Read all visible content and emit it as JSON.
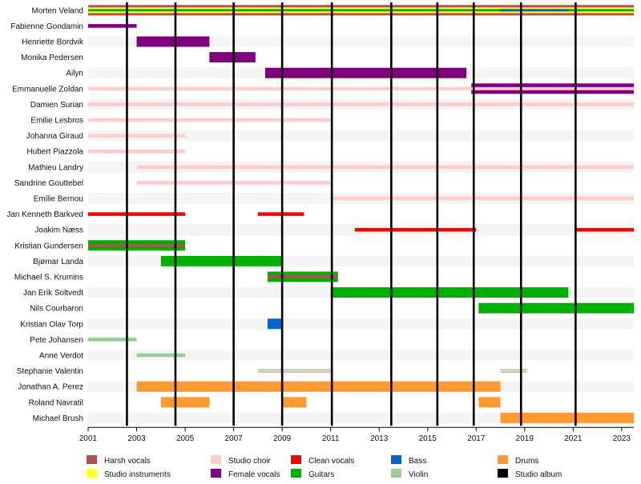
{
  "chart_data": {
    "type": "timeline",
    "title": "",
    "xlabel": "",
    "ylabel": "",
    "xlim": [
      2001,
      2023.5
    ],
    "x_ticks": [
      "2001",
      "2003",
      "2005",
      "2007",
      "2009",
      "2011",
      "2013",
      "2015",
      "2017",
      "2019",
      "2021",
      "2023"
    ],
    "album_years": [
      2002.6,
      2004.6,
      2007.0,
      2009.0,
      2011.05,
      2013.5,
      2015.4,
      2016.9,
      2018.85,
      2021.1
    ],
    "roles": [
      {
        "key": "harsh",
        "name": "Harsh vocals",
        "color": "#b05050"
      },
      {
        "key": "instr",
        "name": "Studio instruments",
        "color": "#ffff33"
      },
      {
        "key": "choir",
        "name": "Studio choir",
        "color": "#ffcccc"
      },
      {
        "key": "female",
        "name": "Female vocals",
        "color": "#800080"
      },
      {
        "key": "clean",
        "name": "Clean vocals",
        "color": "#ff0000"
      },
      {
        "key": "guitars",
        "name": "Guitars",
        "color": "#00b000"
      },
      {
        "key": "bass",
        "name": "Bass",
        "color": "#0066cc"
      },
      {
        "key": "violin",
        "name": "Violin",
        "color": "#99cc99"
      },
      {
        "key": "drums",
        "name": "Drums",
        "color": "#ff9a33"
      },
      {
        "key": "album",
        "name": "Studio album",
        "color": "#000000"
      }
    ],
    "members": [
      {
        "name": "Morten Veland",
        "bars": [
          {
            "start": 2001,
            "end": 2023.5,
            "role": "harsh"
          },
          {
            "start": 2001,
            "end": 2023.5,
            "role": "instr",
            "thin": 0.55
          },
          {
            "start": 2001,
            "end": 2023.5,
            "role": "guitars",
            "thin": 0.22
          },
          {
            "start": 2018.0,
            "end": 2020.8,
            "role": "bass",
            "thin": 0.22
          }
        ]
      },
      {
        "name": "Fabienne Gondamin",
        "bars": [
          {
            "start": 2001,
            "end": 2003.0,
            "role": "female",
            "thin": 0.35
          }
        ]
      },
      {
        "name": "Henriette Bordvik",
        "bars": [
          {
            "start": 2003.0,
            "end": 2006.0,
            "role": "female"
          }
        ]
      },
      {
        "name": "Monika Pedersen",
        "bars": [
          {
            "start": 2006.0,
            "end": 2007.9,
            "role": "female"
          }
        ]
      },
      {
        "name": "Ailyn",
        "bars": [
          {
            "start": 2008.3,
            "end": 2016.6,
            "role": "female"
          }
        ]
      },
      {
        "name": "Emmanuelle Zoldan",
        "bars": [
          {
            "start": 2001,
            "end": 2023.5,
            "role": "choir",
            "thin": 0.35
          },
          {
            "start": 2016.8,
            "end": 2023.5,
            "role": "female"
          },
          {
            "start": 2016.8,
            "end": 2023.5,
            "role": "choir",
            "thin": 0.3
          }
        ]
      },
      {
        "name": "Damien Surian",
        "bars": [
          {
            "start": 2001,
            "end": 2023.5,
            "role": "choir",
            "thin": 0.35
          }
        ]
      },
      {
        "name": "Emilie Lesbros",
        "bars": [
          {
            "start": 2001,
            "end": 2011.0,
            "role": "choir",
            "thin": 0.35
          }
        ]
      },
      {
        "name": "Johanna Giraud",
        "bars": [
          {
            "start": 2001,
            "end": 2005.0,
            "role": "choir",
            "thin": 0.35
          }
        ]
      },
      {
        "name": "Hubert Piazzola",
        "bars": [
          {
            "start": 2001,
            "end": 2005.0,
            "role": "choir",
            "thin": 0.35
          }
        ]
      },
      {
        "name": "Mathieu Landry",
        "bars": [
          {
            "start": 2003.0,
            "end": 2023.5,
            "role": "choir",
            "thin": 0.35
          }
        ]
      },
      {
        "name": "Sandrine Gouttebel",
        "bars": [
          {
            "start": 2003.0,
            "end": 2011.0,
            "role": "choir",
            "thin": 0.35
          }
        ]
      },
      {
        "name": "Emilie Bernou",
        "bars": [
          {
            "start": 2011.0,
            "end": 2023.5,
            "role": "choir",
            "thin": 0.35
          }
        ]
      },
      {
        "name": "Jan Kenneth Barkved",
        "bars": [
          {
            "start": 2001,
            "end": 2005.0,
            "role": "clean",
            "thin": 0.35
          },
          {
            "start": 2008.0,
            "end": 2009.9,
            "role": "clean",
            "thin": 0.35
          }
        ]
      },
      {
        "name": "Joakim Næss",
        "bars": [
          {
            "start": 2012.0,
            "end": 2017.0,
            "role": "clean",
            "thin": 0.35
          },
          {
            "start": 2021.1,
            "end": 2023.5,
            "role": "clean",
            "thin": 0.35
          }
        ]
      },
      {
        "name": "Kristian Gundersen",
        "bars": [
          {
            "start": 2001,
            "end": 2005.0,
            "role": "guitars"
          },
          {
            "start": 2001,
            "end": 2005.0,
            "role": "harsh",
            "thin": 0.3
          }
        ]
      },
      {
        "name": "Bjømar Landa",
        "bars": [
          {
            "start": 2004.0,
            "end": 2009.0,
            "role": "guitars"
          }
        ]
      },
      {
        "name": "Michael S. Krumins",
        "bars": [
          {
            "start": 2008.4,
            "end": 2011.3,
            "role": "guitars"
          },
          {
            "start": 2008.4,
            "end": 2011.3,
            "role": "harsh",
            "thin": 0.3
          }
        ]
      },
      {
        "name": "Jan Erik Soltvedt",
        "bars": [
          {
            "start": 2011.0,
            "end": 2020.8,
            "role": "guitars"
          }
        ]
      },
      {
        "name": "Nils Courbaron",
        "bars": [
          {
            "start": 2017.1,
            "end": 2023.5,
            "role": "guitars"
          }
        ]
      },
      {
        "name": "Kristian Olav Torp",
        "bars": [
          {
            "start": 2008.4,
            "end": 2009.0,
            "role": "bass"
          }
        ]
      },
      {
        "name": "Pete Johansen",
        "bars": [
          {
            "start": 2001,
            "end": 2003.0,
            "role": "violin",
            "thin": 0.35
          }
        ]
      },
      {
        "name": "Anne Verdot",
        "bars": [
          {
            "start": 2003.0,
            "end": 2005.0,
            "role": "violin",
            "thin": 0.35
          }
        ]
      },
      {
        "name": "Stephanie Valentin",
        "bars": [
          {
            "start": 2008.0,
            "end": 2011.0,
            "role": "violin",
            "thin": 0.35
          },
          {
            "start": 2008.0,
            "end": 2011.0,
            "role": "choir",
            "thin": 0.15
          },
          {
            "start": 2018.0,
            "end": 2019.1,
            "role": "violin",
            "thin": 0.35
          },
          {
            "start": 2018.0,
            "end": 2019.1,
            "role": "choir",
            "thin": 0.15
          }
        ]
      },
      {
        "name": "Jonathan A. Perez",
        "bars": [
          {
            "start": 2003.0,
            "end": 2018.0,
            "role": "drums"
          }
        ]
      },
      {
        "name": "Roland Navratil",
        "bars": [
          {
            "start": 2004.0,
            "end": 2006.0,
            "role": "drums"
          },
          {
            "start": 2009.0,
            "end": 2010.0,
            "role": "drums"
          },
          {
            "start": 2017.1,
            "end": 2018.0,
            "role": "drums"
          }
        ]
      },
      {
        "name": "Michael Brush",
        "bars": [
          {
            "start": 2018.0,
            "end": 2023.5,
            "role": "drums"
          }
        ]
      }
    ],
    "legend_placement": "bottom",
    "legend_columns": [
      [
        "harsh",
        "instr"
      ],
      [
        "choir",
        "female"
      ],
      [
        "clean",
        "guitars"
      ],
      [
        "bass",
        "violin"
      ],
      [
        "drums",
        "album"
      ]
    ],
    "grid": false
  }
}
